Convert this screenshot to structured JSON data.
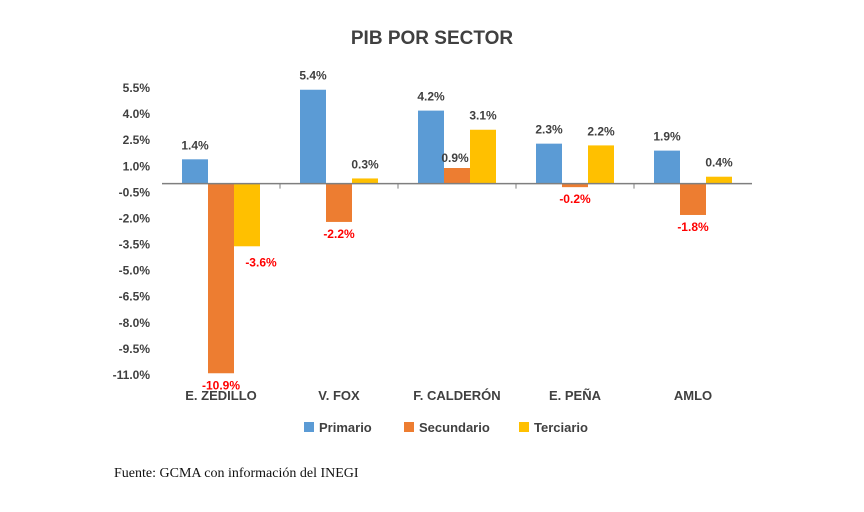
{
  "chart_data": {
    "type": "bar",
    "title": "PIB POR SECTOR",
    "xlabel": "",
    "ylabel": "",
    "categories": [
      "E. ZEDILLO",
      "V. FOX",
      "F. CALDERÓN",
      "E. PEÑA",
      "AMLO"
    ],
    "series": [
      {
        "name": "Primario",
        "color": "#5B9BD5",
        "values": [
          1.4,
          5.4,
          4.2,
          2.3,
          1.9
        ],
        "labels": [
          "1.4%",
          "5.4%",
          "4.2%",
          "2.3%",
          "1.9%"
        ]
      },
      {
        "name": "Secundario",
        "color": "#ED7D31",
        "values": [
          -10.9,
          -2.2,
          0.9,
          -0.2,
          -1.8
        ],
        "labels": [
          "-10.9%",
          "-2.2%",
          "0.9%",
          "-0.2%",
          "-1.8%"
        ]
      },
      {
        "name": "Terciario",
        "color": "#FFC000",
        "values": [
          -3.6,
          0.3,
          3.1,
          2.2,
          0.4
        ],
        "labels": [
          "-3.6%",
          "0.3%",
          "3.1%",
          "2.2%",
          "0.4%"
        ]
      }
    ],
    "yticks": [
      5.5,
      4.0,
      2.5,
      1.0,
      -0.5,
      -2.0,
      -3.5,
      -5.0,
      -6.5,
      -8.0,
      -9.5,
      -11.0
    ],
    "ytick_labels": [
      "5.5%",
      "4.0%",
      "2.5%",
      "1.0%",
      "-0.5%",
      "-2.0%",
      "-3.5%",
      "-5.0%",
      "-6.5%",
      "-8.0%",
      "-9.5%",
      "-11.0%"
    ],
    "ylim": [
      -11.0,
      5.5
    ],
    "grid": false,
    "legend_position": "bottom",
    "negative_label_color": "#FF0000",
    "positive_label_color": "#404040"
  },
  "source_note": "Fuente: GCMA con información del INEGI"
}
